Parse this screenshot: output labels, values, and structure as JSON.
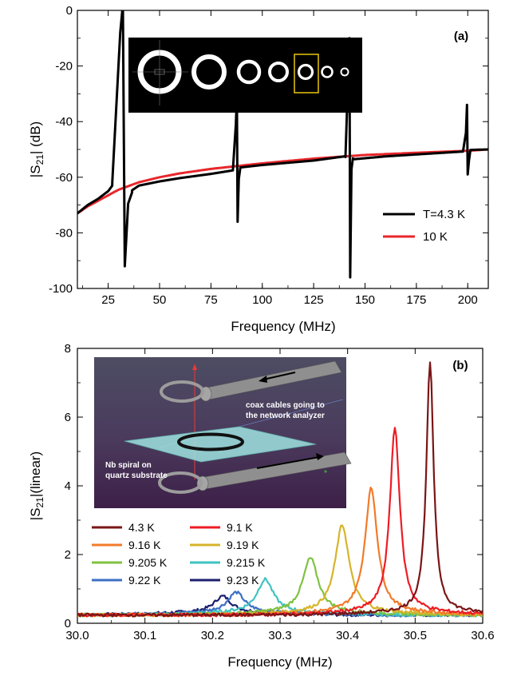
{
  "chart_data": [
    {
      "type": "line",
      "panel_label": "(a)",
      "xlabel": "Frequency (MHz)",
      "ylabel_main": "|S",
      "ylabel_sub": "21",
      "ylabel_tail": "| (dB)",
      "xlim": [
        10,
        210
      ],
      "ylim": [
        -100,
        0
      ],
      "xticks": [
        25,
        50,
        75,
        100,
        125,
        150,
        175,
        200
      ],
      "yticks": [
        0,
        -20,
        -40,
        -60,
        -80,
        -100
      ],
      "legend_position": "bottom-right",
      "resonances": [
        {
          "f": 31.8,
          "peak": -8,
          "dip": -92
        },
        {
          "f": 87.5,
          "peak": -41,
          "dip": -76
        },
        {
          "f": 142.3,
          "peak": -20,
          "dip": -96
        },
        {
          "f": 199.5,
          "peak": -44,
          "dip": -59
        }
      ],
      "series": [
        {
          "name": "T=4.3 K",
          "color": "#000000"
        },
        {
          "name": "10 K",
          "color": "#e8262b",
          "x": [
            10,
            15,
            20,
            25,
            30,
            40,
            50,
            60,
            75,
            90,
            100,
            125,
            150,
            175,
            200,
            210
          ],
          "y": [
            -73,
            -70.5,
            -68.5,
            -66.5,
            -64.5,
            -61.8,
            -60,
            -58.6,
            -57,
            -55.8,
            -55,
            -53.3,
            -52,
            -51.2,
            -50.5,
            -50
          ]
        }
      ],
      "baseline_4K": {
        "x": [
          10,
          15,
          20,
          25,
          29,
          34,
          40,
          50,
          60,
          75,
          86,
          89,
          100,
          125,
          140,
          145,
          160,
          175,
          199,
          200,
          210
        ],
        "y": [
          -73,
          -70,
          -67.8,
          -65,
          -61,
          -66,
          -63,
          -61.5,
          -60.3,
          -58.8,
          -57.5,
          -56.5,
          -55.6,
          -54,
          -52.5,
          -53.5,
          -52.5,
          -51.8,
          -50.7,
          -50.2,
          -50
        ]
      },
      "inset_image": "microscope-rings"
    },
    {
      "type": "line",
      "panel_label": "(b)",
      "xlabel": "Frequency (MHz)",
      "ylabel_main": "|S",
      "ylabel_sub": "21",
      "ylabel_tail": "|(linear)",
      "xlim": [
        30.0,
        30.6
      ],
      "ylim": [
        0,
        8
      ],
      "xticks": [
        "30.0",
        "30.1",
        "30.2",
        "30.3",
        "30.4",
        "30.5",
        "30.6"
      ],
      "yticks": [
        0,
        2,
        4,
        6,
        8
      ],
      "legend_position": "lower-left",
      "series": [
        {
          "name": "4.3 K",
          "color": "#7a1516",
          "f0": 30.522,
          "peak": 7.75
        },
        {
          "name": "9.1 K",
          "color": "#ed1c24",
          "f0": 30.47,
          "peak": 5.72
        },
        {
          "name": "9.16 K",
          "color": "#f37a2a",
          "f0": 30.435,
          "peak": 3.85
        },
        {
          "name": "9.19 K",
          "color": "#d6b42a",
          "f0": 30.392,
          "peak": 2.7
        },
        {
          "name": "9.205 K",
          "color": "#7fc241",
          "f0": 30.345,
          "peak": 1.68
        },
        {
          "name": "9.215 K",
          "color": "#3fc3c0",
          "f0": 30.278,
          "peak": 1.02
        },
        {
          "name": "9.22 K",
          "color": "#3d6fc4",
          "f0": 30.235,
          "peak": 0.62
        },
        {
          "name": "9.23 K",
          "color": "#1c1f6e",
          "f0": 30.215,
          "peak": 0.5
        }
      ],
      "inset": {
        "label_coax": "coax cables going to",
        "label_coax2": "the network analyzer",
        "label_nb": "Nb spiral on",
        "label_nb2": "quartz substrate"
      }
    }
  ]
}
